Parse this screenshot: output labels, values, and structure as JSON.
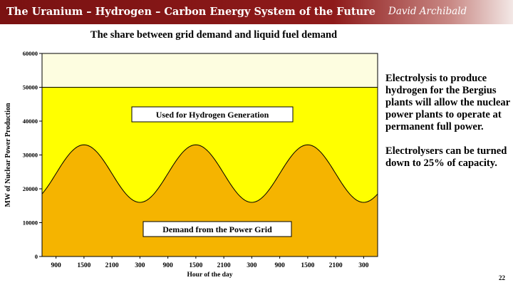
{
  "header": {
    "title": "The Uranium – Hydrogen – Carbon Energy System of the Future",
    "author": "David Archibald"
  },
  "side_text": [
    "Electrolysis to produce hydrogen for the Bergius plants will allow the nuclear power plants to operate at permanent full power.",
    "Electrolysers can be turned down to 25% of capacity."
  ],
  "page_number": "22",
  "colors": {
    "header_bar": "#8e1a1a",
    "grid_demand_fill": "#f5b400",
    "hydrogen_fill": "#ffff00",
    "plot_background": "#fdfde0"
  },
  "chart_data": {
    "type": "area",
    "title": "The share between grid demand and liquid fuel demand",
    "xlabel": "Hour of the day",
    "ylabel": "MW of Nuclear Power Production",
    "ylim": [
      0,
      60000
    ],
    "yticks": [
      0,
      10000,
      20000,
      30000,
      40000,
      50000,
      60000
    ],
    "xtick_labels": [
      "900",
      "1500",
      "2100",
      "300",
      "900",
      "1500",
      "2100",
      "300",
      "900",
      "1500",
      "2100",
      "300"
    ],
    "grid": false,
    "series": [
      {
        "name": "Demand from the Power Grid",
        "type": "line-area",
        "x": [
          "900",
          "1500",
          "2100",
          "300",
          "900",
          "1500",
          "2100",
          "300",
          "900",
          "1500",
          "2100",
          "300"
        ],
        "note_peak": 33000,
        "note_trough": 16000,
        "values": [
          24500,
          33000,
          24500,
          16000,
          24500,
          33000,
          24500,
          16000,
          24500,
          33000,
          24500,
          16000
        ]
      },
      {
        "name": "Used for Hydrogen Generation",
        "type": "flat-top",
        "values": [
          50000,
          50000,
          50000,
          50000,
          50000,
          50000,
          50000,
          50000,
          50000,
          50000,
          50000,
          50000
        ]
      }
    ],
    "annotations": [
      {
        "text": "Used for Hydrogen Generation"
      },
      {
        "text": "Demand from the Power Grid"
      }
    ]
  }
}
